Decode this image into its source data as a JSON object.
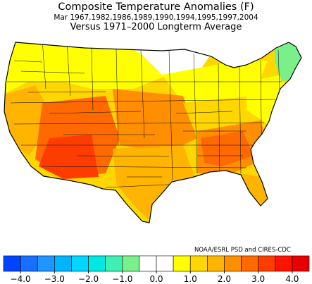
{
  "header": {
    "title": "Composite Temperature Anomalies (F)",
    "composite_line": "Mar   1967,1982,1986,1989,1990,1994,1995,1997,2004",
    "baseline_line": "Versus 1971–2000 Longterm Average"
  },
  "credit": "NOAA/ESRL PSD and CIRES-CDC",
  "colorbar": {
    "colors": [
      "#0044ff",
      "#1570ff",
      "#1e95ff",
      "#00b5ff",
      "#00d6ff",
      "#00e8e0",
      "#40f0b0",
      "#7af08a",
      "#ffffff",
      "#ffffff",
      "#ffff00",
      "#ffd700",
      "#ffb400",
      "#ff8f00",
      "#ff6a00",
      "#ff3c00",
      "#ff1400",
      "#e60000"
    ],
    "ticks": [
      {
        "label": "−4.0",
        "value": -4.0
      },
      {
        "label": "−3.0",
        "value": -3.0
      },
      {
        "label": "−2.0",
        "value": -2.0
      },
      {
        "label": "−1.0",
        "value": -1.0
      },
      {
        "label": "0.0",
        "value": 0.0
      },
      {
        "label": "1.0",
        "value": 1.0
      },
      {
        "label": "2.0",
        "value": 2.0
      },
      {
        "label": "3.0",
        "value": 3.0
      },
      {
        "label": "4.0",
        "value": 4.0
      }
    ],
    "range": [
      -4.5,
      4.5
    ],
    "step": 0.5
  },
  "map": {
    "regions": [
      {
        "name": "pacific-northwest",
        "anomaly": 0.8
      },
      {
        "name": "northern-rockies",
        "anomaly": 1.6
      },
      {
        "name": "california",
        "anomaly": 2.2
      },
      {
        "name": "southwest",
        "anomaly": 3.6
      },
      {
        "name": "four-corners",
        "anomaly": 3.2
      },
      {
        "name": "central-plains",
        "anomaly": 2.0
      },
      {
        "name": "northern-plains",
        "anomaly": 0.0
      },
      {
        "name": "great-lakes",
        "anomaly": 0.6
      },
      {
        "name": "ohio-valley",
        "anomaly": 1.3
      },
      {
        "name": "mid-atlantic",
        "anomaly": 1.2
      },
      {
        "name": "southeast",
        "anomaly": 2.6
      },
      {
        "name": "tennessee-valley",
        "anomaly": 3.5
      },
      {
        "name": "texas-gulf",
        "anomaly": 1.6
      },
      {
        "name": "florida",
        "anomaly": 2.0
      },
      {
        "name": "new-england",
        "anomaly": -0.7
      }
    ]
  }
}
